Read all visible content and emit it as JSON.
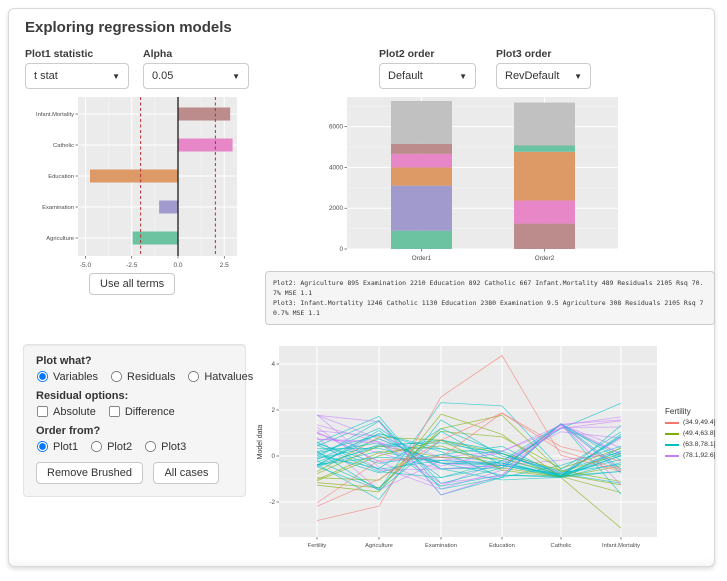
{
  "page": {
    "title": "Exploring regression models"
  },
  "controls": {
    "plot1_statistic": {
      "label": "Plot1 statistic",
      "value": "t stat"
    },
    "alpha": {
      "label": "Alpha",
      "value": "0.05"
    },
    "plot2_order": {
      "label": "Plot2 order",
      "value": "Default"
    },
    "plot3_order": {
      "label": "Plot3 order",
      "value": "RevDefault"
    },
    "use_all_terms": "Use all terms"
  },
  "summary_text": {
    "text": "Plot2: Agriculture 895 Examination 2210 Education 892 Catholic 667 Infant.Mortality 489 Residuals 2105 Rsq 70.7% MSE 1.1\nPlot3: Infant.Mortality 1246 Catholic 1130 Education 2380 Examination 9.5 Agriculture 308 Residuals 2105 Rsq 70.7% MSE 1.1"
  },
  "panel": {
    "plot_what": {
      "label": "Plot what?",
      "options": [
        "Variables",
        "Residuals",
        "Hatvalues"
      ],
      "selected": "Variables"
    },
    "residual_options": {
      "label": "Residual options:",
      "options": [
        "Absolute",
        "Difference"
      ],
      "checked": []
    },
    "order_from": {
      "label": "Order from?",
      "options": [
        "Plot1",
        "Plot2",
        "Plot3"
      ],
      "selected": "Plot1"
    },
    "buttons": {
      "remove_brushed": "Remove Brushed",
      "all_cases": "All cases"
    }
  },
  "colors": {
    "panel_bg": "#EBEBEB",
    "grid_major": "#FFFFFF",
    "grid_minor": "#F4F4F4",
    "tick_text": "#4D4D4D",
    "critical_line": "#B23030",
    "zero_line": "#2B2B2B",
    "terms": {
      "Agriculture": "#6CC3A2",
      "Examination": "#A09BCC",
      "Education": "#DD9A67",
      "Catholic": "#E787C8",
      "Infant.Mortality": "#BC8B8B",
      "Residuals": "#C1C1C1"
    }
  },
  "chart_data": [
    {
      "type": "bar",
      "orientation": "horizontal",
      "title": "Plot1: t statistics of model terms",
      "categories": [
        "Infant.Mortality",
        "Catholic",
        "Education",
        "Examination",
        "Agriculture"
      ],
      "values": [
        2.82,
        2.95,
        -4.76,
        -1.02,
        -2.45
      ],
      "critical_values": [
        -2.02,
        2.02
      ],
      "xticks": [
        -5.0,
        -2.5,
        0.0,
        2.5
      ],
      "xlim": [
        -5.5,
        3.3
      ]
    },
    {
      "type": "stacked-bar",
      "title": "Plot2/Plot3: sequential sums of squares",
      "categories": [
        "Order1",
        "Order2"
      ],
      "yticks": [
        0,
        2000,
        4000,
        6000
      ],
      "ylim": [
        0,
        7450
      ],
      "bars": [
        {
          "category": "Order1",
          "segments": [
            [
              "Agriculture",
              895
            ],
            [
              "Examination",
              2210
            ],
            [
              "Education",
              892
            ],
            [
              "Catholic",
              667
            ],
            [
              "Infant.Mortality",
              489
            ],
            [
              "Residuals",
              2105
            ]
          ]
        },
        {
          "category": "Order2",
          "segments": [
            [
              "Infant.Mortality",
              1246
            ],
            [
              "Catholic",
              1130
            ],
            [
              "Education",
              2380
            ],
            [
              "Examination",
              9.5
            ],
            [
              "Agriculture",
              308
            ],
            [
              "Residuals",
              2105
            ]
          ]
        }
      ]
    },
    {
      "type": "parallel-coordinates",
      "ylabel": "Model data",
      "yticks": [
        -2,
        0,
        2,
        4
      ],
      "ylim": [
        -3.6,
        4.8
      ],
      "axes": [
        "Fertility",
        "Agriculture",
        "Examination",
        "Education",
        "Catholic",
        "Infant.Mortality"
      ],
      "legend_title": "Fertility",
      "groups": [
        {
          "label": "(34.9,49.4]",
          "color": "#F8766D"
        },
        {
          "label": "(49.4,63.8]",
          "color": "#7CAE00"
        },
        {
          "label": "(63.8,78.1]",
          "color": "#00BFC4"
        },
        {
          "label": "(78.1,92.6]",
          "color": "#C77CFF"
        }
      ],
      "rows": [
        {
          "g": 3,
          "v": [
            0.81,
            -1.48,
            -0.19,
            0.11,
            -0.75,
            0.78
          ]
        },
        {
          "g": 3,
          "v": [
            1.04,
            -0.24,
            -1.31,
            -0.21,
            1.05,
            0.78
          ]
        },
        {
          "g": 3,
          "v": [
            1.79,
            -0.48,
            -1.44,
            -0.62,
            1.25,
            0.09
          ]
        },
        {
          "g": 3,
          "v": [
            1.25,
            -0.62,
            -0.56,
            -0.41,
            -0.18,
            0.12
          ]
        },
        {
          "g": 2,
          "v": [
            0.54,
            -0.32,
            0.06,
            0.42,
            -0.86,
            0.23
          ]
        },
        {
          "g": 2,
          "v": [
            0.48,
            -0.68,
            -0.94,
            -0.41,
            1.19,
            2.29
          ]
        },
        {
          "g": 3,
          "v": [
            1.09,
            0.86,
            -0.06,
            -0.41,
            1.24,
            1.26
          ]
        },
        {
          "g": 3,
          "v": [
            1.78,
            0.75,
            -0.31,
            -0.31,
            1.34,
            1.7
          ]
        },
        {
          "g": 3,
          "v": [
            0.98,
            0.12,
            -0.56,
            -0.41,
            1.36,
            0.36
          ]
        },
        {
          "g": 3,
          "v": [
            1.02,
            -0.24,
            -0.06,
            0.21,
            1.2,
            1.53
          ]
        },
        {
          "g": 3,
          "v": [
            1.36,
            0.61,
            -0.31,
            -0.52,
            1.38,
            1.57
          ]
        },
        {
          "g": 2,
          "v": [
            -0.48,
            0.5,
            0.57,
            0.11,
            -0.78,
            -1.18
          ]
        },
        {
          "g": 2,
          "v": [
            -0.26,
            0.74,
            -0.31,
            -0.41,
            -0.93,
            -0.29
          ]
        },
        {
          "g": 2,
          "v": [
            -0.1,
            0.44,
            0.31,
            0.11,
            -0.88,
            0.95
          ]
        },
        {
          "g": 1,
          "v": [
            -0.68,
            0.82,
            0.69,
            -0.62,
            -0.92,
            -0.43
          ]
        },
        {
          "g": 2,
          "v": [
            -0.15,
            0.97,
            0.19,
            -0.93,
            -0.41,
            0.43
          ]
        },
        {
          "g": 2,
          "v": [
            0.13,
            -0.73,
            0.06,
            -0.31,
            -0.91,
            0.02
          ]
        },
        {
          "g": 1,
          "v": [
            -1.16,
            -1.38,
            1.19,
            1.77,
            -0.7,
            0.09
          ]
        },
        {
          "g": 1,
          "v": [
            -1.27,
            -1.56,
            1.82,
            0.94,
            -0.94,
            -3.14
          ]
        },
        {
          "g": 2,
          "v": [
            -0.4,
            0.98,
            0.31,
            -0.21,
            -0.92,
            0.02
          ]
        },
        {
          "g": 2,
          "v": [
            -0.37,
            0.4,
            0.69,
            -0.1,
            -0.86,
            -0.67
          ]
        },
        {
          "g": 2,
          "v": [
            -0.41,
            0.2,
            -0.31,
            -0.83,
            -0.88,
            0.85
          ]
        },
        {
          "g": 1,
          "v": [
            -1.08,
            0.01,
            0.69,
            0.11,
            -0.62,
            -1.11
          ]
        },
        {
          "g": 1,
          "v": [
            -1.02,
            0.15,
            0.44,
            -0.52,
            -0.89,
            -1.59
          ]
        },
        {
          "g": 2,
          "v": [
            0.19,
            0.9,
            -0.56,
            -1.04,
            -0.93,
            0.36
          ]
        },
        {
          "g": 2,
          "v": [
            0.33,
            0.33,
            -0.31,
            -0.31,
            -0.86,
            1.33
          ]
        },
        {
          "g": 2,
          "v": [
            0.15,
            0.57,
            -1.31,
            -0.83,
            -0.93,
            -0.67
          ]
        },
        {
          "g": 1,
          "v": [
            -0.77,
            0.45,
            -0.06,
            -0.1,
            -0.8,
            -1.25
          ]
        },
        {
          "g": 1,
          "v": [
            -0.95,
            -1.05,
            1.07,
            0.83,
            -0.54,
            0.33
          ]
        },
        {
          "g": 2,
          "v": [
            -0.38,
            -0.05,
            -0.19,
            -0.31,
            -0.84,
            0.88
          ]
        },
        {
          "g": 2,
          "v": [
            0.43,
            1.55,
            -1.69,
            -0.93,
            1.4,
            -1.66
          ]
        },
        {
          "g": 2,
          "v": [
            -0.07,
            1.51,
            -1.19,
            -0.52,
            1.4,
            -0.05
          ]
        },
        {
          "g": 2,
          "v": [
            0.57,
            1.72,
            -1.44,
            -0.93,
            1.41,
            -0.56
          ]
        },
        {
          "g": 2,
          "v": [
            0.03,
            1.21,
            -0.56,
            -0.52,
            1.39,
            -0.19
          ]
        },
        {
          "g": 3,
          "v": [
            0.74,
            0.63,
            -1.19,
            -0.83,
            1.37,
            0.09
          ]
        },
        {
          "g": 2,
          "v": [
            -0.41,
            1.11,
            -0.94,
            -0.21,
            1.39,
            -0.74
          ]
        },
        {
          "g": 3,
          "v": [
            1.77,
            1.49,
            -1.69,
            -0.83,
            1.4,
            -1.25
          ]
        },
        {
          "g": 3,
          "v": [
            0.73,
            0.55,
            -0.44,
            0.21,
            1.34,
            -0.63
          ]
        },
        {
          "g": 2,
          "v": [
            0.02,
            -0.54,
            1.19,
            0.11,
            -0.85,
            0.12
          ]
        },
        {
          "g": 2,
          "v": [
            -0.36,
            -1.89,
            1.57,
            0.0,
            -0.66,
            0.19
          ]
        },
        {
          "g": 2,
          "v": [
            0.2,
            -1.5,
            0.69,
            0.21,
            -0.72,
            -0.36
          ]
        },
        {
          "g": 2,
          "v": [
            -0.46,
            -1.46,
            2.32,
            2.18,
            -0.58,
            1.05
          ]
        },
        {
          "g": 2,
          "v": [
            0.6,
            -0.58,
            -0.19,
            -0.41,
            -0.87,
            0.02
          ]
        },
        {
          "g": 2,
          "v": [
            -0.2,
            -1.41,
            1.07,
            -0.41,
            -0.78,
            -0.15
          ]
        },
        {
          "g": 0,
          "v": [
            -2.81,
            -2.18,
            2.57,
            4.37,
            0.03,
            -0.67
          ]
        },
        {
          "g": 0,
          "v": [
            -2.04,
            -0.18,
            -0.06,
            1.87,
            0.22,
            -0.6
          ]
        },
        {
          "g": 0,
          "v": [
            -2.19,
            -1.01,
            0.69,
            1.87,
            0.41,
            -0.22
          ]
        }
      ]
    }
  ]
}
